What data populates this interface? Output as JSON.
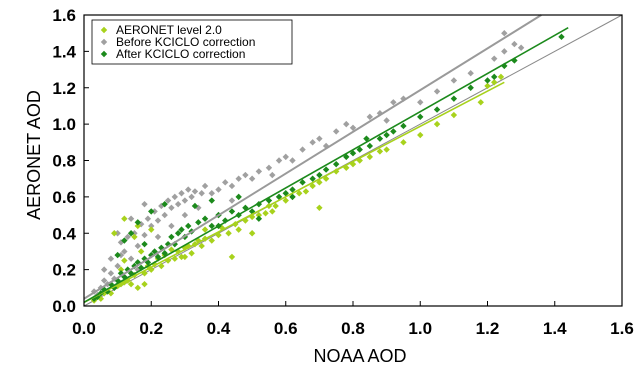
{
  "chart_data": {
    "type": "scatter",
    "title": "",
    "xlabel": "NOAA AOD",
    "ylabel": "AERONET AOD",
    "xlim": [
      0.0,
      1.6
    ],
    "ylim": [
      0.0,
      1.6
    ],
    "x_ticks": [
      "0.0",
      "0.2",
      "0.4",
      "0.6",
      "0.8",
      "1.0",
      "1.2",
      "1.4",
      "1.6"
    ],
    "y_ticks": [
      "0.0",
      "0.2",
      "0.4",
      "0.6",
      "0.8",
      "1.0",
      "1.2",
      "1.4",
      "1.6"
    ],
    "grid": false,
    "legend_position": "top-left",
    "one_to_one_line": true,
    "colors": {
      "AERONET level 2.0": "#a8d21c",
      "Before KCICLO correction": "#a0a0a0",
      "After KCICLO correction": "#1c8a1c"
    },
    "series": [
      {
        "name": "AERONET level 2.0",
        "marker": "diamond",
        "fit_line": {
          "x": [
            0.0,
            1.25
          ],
          "y": [
            0.02,
            1.23
          ]
        },
        "points": [
          [
            0.03,
            0.03
          ],
          [
            0.05,
            0.04
          ],
          [
            0.06,
            0.07
          ],
          [
            0.08,
            0.07
          ],
          [
            0.09,
            0.1
          ],
          [
            0.1,
            0.11
          ],
          [
            0.11,
            0.2
          ],
          [
            0.11,
            0.12
          ],
          [
            0.12,
            0.25
          ],
          [
            0.12,
            0.13
          ],
          [
            0.13,
            0.14
          ],
          [
            0.14,
            0.12
          ],
          [
            0.15,
            0.38
          ],
          [
            0.15,
            0.17
          ],
          [
            0.16,
            0.1
          ],
          [
            0.17,
            0.3
          ],
          [
            0.18,
            0.18
          ],
          [
            0.19,
            0.22
          ],
          [
            0.2,
            0.2
          ],
          [
            0.2,
            0.42
          ],
          [
            0.21,
            0.23
          ],
          [
            0.22,
            0.26
          ],
          [
            0.23,
            0.22
          ],
          [
            0.24,
            0.28
          ],
          [
            0.25,
            0.25
          ],
          [
            0.26,
            0.31
          ],
          [
            0.27,
            0.26
          ],
          [
            0.28,
            0.3
          ],
          [
            0.29,
            0.27
          ],
          [
            0.3,
            0.32
          ],
          [
            0.31,
            0.33
          ],
          [
            0.32,
            0.29
          ],
          [
            0.33,
            0.34
          ],
          [
            0.34,
            0.36
          ],
          [
            0.35,
            0.33
          ],
          [
            0.36,
            0.37
          ],
          [
            0.38,
            0.36
          ],
          [
            0.4,
            0.39
          ],
          [
            0.41,
            0.43
          ],
          [
            0.43,
            0.4
          ],
          [
            0.45,
            0.45
          ],
          [
            0.46,
            0.42
          ],
          [
            0.48,
            0.47
          ],
          [
            0.5,
            0.49
          ],
          [
            0.52,
            0.5
          ],
          [
            0.54,
            0.51
          ],
          [
            0.55,
            0.55
          ],
          [
            0.57,
            0.55
          ],
          [
            0.6,
            0.58
          ],
          [
            0.62,
            0.6
          ],
          [
            0.64,
            0.62
          ],
          [
            0.66,
            0.63
          ],
          [
            0.68,
            0.66
          ],
          [
            0.7,
            0.68
          ],
          [
            0.72,
            0.7
          ],
          [
            0.75,
            0.74
          ],
          [
            0.78,
            0.76
          ],
          [
            0.8,
            0.78
          ],
          [
            0.82,
            0.8
          ],
          [
            0.85,
            0.82
          ],
          [
            0.88,
            0.85
          ],
          [
            0.9,
            0.86
          ],
          [
            0.95,
            0.9
          ],
          [
            1.0,
            0.94
          ],
          [
            1.05,
            1.0
          ],
          [
            1.1,
            1.05
          ],
          [
            1.18,
            1.12
          ],
          [
            1.2,
            1.21
          ],
          [
            1.22,
            1.23
          ],
          [
            1.24,
            1.26
          ],
          [
            0.7,
            0.54
          ],
          [
            0.44,
            0.27
          ],
          [
            0.12,
            0.48
          ],
          [
            0.16,
            0.44
          ],
          [
            0.09,
            0.4
          ],
          [
            0.5,
            0.4
          ],
          [
            0.3,
            0.27
          ],
          [
            0.36,
            0.42
          ],
          [
            0.56,
            0.52
          ],
          [
            0.18,
            0.12
          ]
        ]
      },
      {
        "name": "Before KCICLO correction",
        "marker": "diamond",
        "fit_line": {
          "x": [
            0.0,
            1.36
          ],
          "y": [
            0.04,
            1.6
          ]
        },
        "points": [
          [
            0.03,
            0.08
          ],
          [
            0.04,
            0.06
          ],
          [
            0.05,
            0.1
          ],
          [
            0.06,
            0.14
          ],
          [
            0.07,
            0.12
          ],
          [
            0.08,
            0.18
          ],
          [
            0.09,
            0.15
          ],
          [
            0.1,
            0.22
          ],
          [
            0.11,
            0.28
          ],
          [
            0.11,
            0.35
          ],
          [
            0.12,
            0.3
          ],
          [
            0.13,
            0.38
          ],
          [
            0.14,
            0.26
          ],
          [
            0.15,
            0.4
          ],
          [
            0.16,
            0.33
          ],
          [
            0.17,
            0.45
          ],
          [
            0.18,
            0.39
          ],
          [
            0.19,
            0.48
          ],
          [
            0.2,
            0.44
          ],
          [
            0.21,
            0.52
          ],
          [
            0.22,
            0.47
          ],
          [
            0.23,
            0.55
          ],
          [
            0.24,
            0.5
          ],
          [
            0.25,
            0.58
          ],
          [
            0.26,
            0.54
          ],
          [
            0.27,
            0.6
          ],
          [
            0.28,
            0.56
          ],
          [
            0.29,
            0.62
          ],
          [
            0.3,
            0.58
          ],
          [
            0.31,
            0.64
          ],
          [
            0.32,
            0.6
          ],
          [
            0.33,
            0.63
          ],
          [
            0.35,
            0.62
          ],
          [
            0.36,
            0.66
          ],
          [
            0.38,
            0.62
          ],
          [
            0.4,
            0.64
          ],
          [
            0.42,
            0.68
          ],
          [
            0.44,
            0.66
          ],
          [
            0.46,
            0.7
          ],
          [
            0.48,
            0.72
          ],
          [
            0.5,
            0.7
          ],
          [
            0.52,
            0.74
          ],
          [
            0.55,
            0.76
          ],
          [
            0.58,
            0.8
          ],
          [
            0.6,
            0.82
          ],
          [
            0.62,
            0.8
          ],
          [
            0.65,
            0.86
          ],
          [
            0.68,
            0.9
          ],
          [
            0.7,
            0.92
          ],
          [
            0.72,
            0.88
          ],
          [
            0.75,
            0.96
          ],
          [
            0.78,
            1.0
          ],
          [
            0.8,
            0.98
          ],
          [
            0.85,
            1.04
          ],
          [
            0.88,
            1.06
          ],
          [
            0.9,
            1.02
          ],
          [
            0.92,
            1.12
          ],
          [
            0.95,
            1.14
          ],
          [
            1.0,
            1.12
          ],
          [
            1.05,
            1.18
          ],
          [
            1.1,
            1.24
          ],
          [
            1.15,
            1.28
          ],
          [
            1.22,
            1.36
          ],
          [
            1.25,
            1.4
          ],
          [
            1.28,
            1.44
          ],
          [
            1.3,
            1.42
          ],
          [
            1.25,
            1.5
          ],
          [
            0.1,
            0.4
          ],
          [
            0.14,
            0.48
          ],
          [
            0.18,
            0.56
          ],
          [
            0.22,
            0.38
          ],
          [
            0.26,
            0.44
          ],
          [
            0.34,
            0.54
          ],
          [
            0.4,
            0.5
          ],
          [
            0.3,
            0.5
          ],
          [
            0.16,
            0.2
          ],
          [
            0.06,
            0.2
          ],
          [
            0.08,
            0.26
          ],
          [
            0.44,
            0.58
          ],
          [
            0.56,
            0.72
          ]
        ]
      },
      {
        "name": "After KCICLO correction",
        "marker": "diamond",
        "fit_line": {
          "x": [
            0.0,
            1.44
          ],
          "y": [
            0.02,
            1.53
          ]
        },
        "points": [
          [
            0.03,
            0.04
          ],
          [
            0.04,
            0.05
          ],
          [
            0.05,
            0.07
          ],
          [
            0.06,
            0.09
          ],
          [
            0.07,
            0.08
          ],
          [
            0.08,
            0.12
          ],
          [
            0.09,
            0.1
          ],
          [
            0.1,
            0.14
          ],
          [
            0.11,
            0.18
          ],
          [
            0.12,
            0.16
          ],
          [
            0.13,
            0.2
          ],
          [
            0.14,
            0.18
          ],
          [
            0.15,
            0.22
          ],
          [
            0.16,
            0.24
          ],
          [
            0.17,
            0.21
          ],
          [
            0.18,
            0.26
          ],
          [
            0.19,
            0.24
          ],
          [
            0.2,
            0.28
          ],
          [
            0.21,
            0.3
          ],
          [
            0.22,
            0.27
          ],
          [
            0.23,
            0.32
          ],
          [
            0.24,
            0.29
          ],
          [
            0.25,
            0.34
          ],
          [
            0.26,
            0.38
          ],
          [
            0.27,
            0.34
          ],
          [
            0.28,
            0.4
          ],
          [
            0.29,
            0.42
          ],
          [
            0.3,
            0.38
          ],
          [
            0.31,
            0.44
          ],
          [
            0.32,
            0.41
          ],
          [
            0.34,
            0.46
          ],
          [
            0.36,
            0.48
          ],
          [
            0.38,
            0.44
          ],
          [
            0.4,
            0.5
          ],
          [
            0.42,
            0.47
          ],
          [
            0.44,
            0.52
          ],
          [
            0.46,
            0.5
          ],
          [
            0.48,
            0.54
          ],
          [
            0.5,
            0.52
          ],
          [
            0.52,
            0.56
          ],
          [
            0.55,
            0.58
          ],
          [
            0.58,
            0.6
          ],
          [
            0.6,
            0.62
          ],
          [
            0.62,
            0.64
          ],
          [
            0.65,
            0.68
          ],
          [
            0.68,
            0.7
          ],
          [
            0.7,
            0.72
          ],
          [
            0.72,
            0.75
          ],
          [
            0.75,
            0.78
          ],
          [
            0.78,
            0.82
          ],
          [
            0.8,
            0.84
          ],
          [
            0.82,
            0.86
          ],
          [
            0.85,
            0.88
          ],
          [
            0.88,
            0.92
          ],
          [
            0.9,
            0.94
          ],
          [
            0.92,
            0.96
          ],
          [
            0.95,
            0.99
          ],
          [
            1.0,
            1.04
          ],
          [
            1.05,
            1.08
          ],
          [
            1.1,
            1.14
          ],
          [
            1.15,
            1.2
          ],
          [
            1.2,
            1.24
          ],
          [
            1.22,
            1.26
          ],
          [
            1.25,
            1.32
          ],
          [
            1.28,
            1.35
          ],
          [
            1.42,
            1.48
          ],
          [
            0.2,
            0.52
          ],
          [
            0.16,
            0.46
          ],
          [
            0.24,
            0.56
          ],
          [
            0.14,
            0.4
          ],
          [
            0.33,
            0.55
          ],
          [
            0.12,
            0.36
          ],
          [
            0.38,
            0.58
          ],
          [
            0.46,
            0.6
          ],
          [
            0.52,
            0.48
          ],
          [
            0.62,
            0.6
          ],
          [
            0.1,
            0.28
          ],
          [
            0.18,
            0.34
          ],
          [
            0.4,
            0.44
          ],
          [
            0.84,
            0.92
          ]
        ]
      }
    ]
  }
}
